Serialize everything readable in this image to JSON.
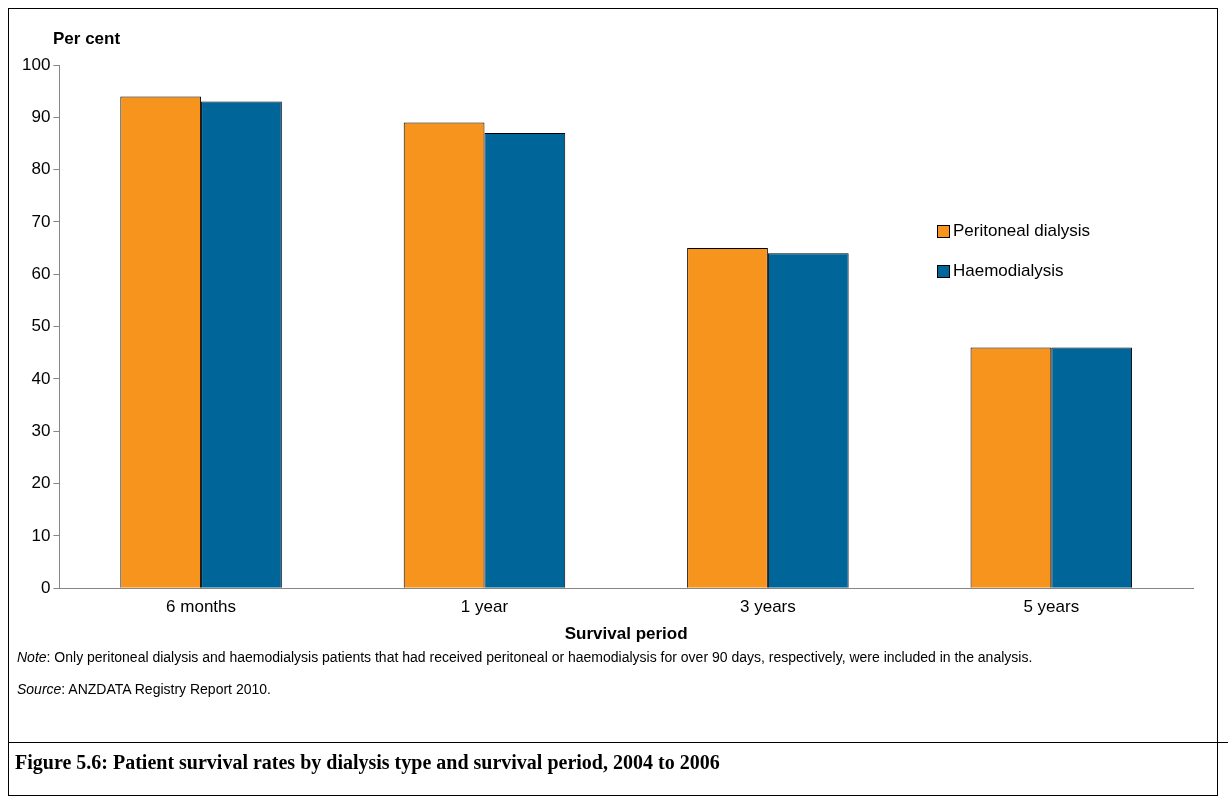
{
  "chart_data": {
    "type": "bar",
    "title": "Figure 5.6: Patient survival rates by dialysis type and survival period, 2004 to 2006",
    "xlabel": "Survival period",
    "ylabel": "Per cent",
    "categories": [
      "6 months",
      "1 year",
      "3 years",
      "5 years"
    ],
    "series": [
      {
        "name": "Peritoneal dialysis",
        "color": "#f7941d",
        "values": [
          94,
          89,
          65,
          46
        ]
      },
      {
        "name": "Haemodialysis",
        "color": "#006699",
        "values": [
          93,
          87,
          64,
          46
        ]
      }
    ],
    "ylim": [
      0,
      100
    ],
    "yticks": [
      0,
      10,
      20,
      30,
      40,
      50,
      60,
      70,
      80,
      90,
      100
    ],
    "grid": false,
    "legend": "right",
    "annotations": [
      "Note: Only peritoneal dialysis and haemodialysis patients that had received peritoneal or haemodialysis for over 90 days, respectively, were included in the analysis.",
      "Source: ANZDATA Registry Report 2010."
    ]
  }
}
